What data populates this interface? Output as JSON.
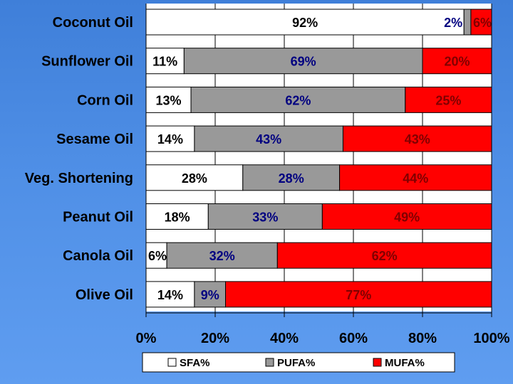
{
  "chart_data": {
    "type": "bar",
    "stacked": true,
    "orientation": "horizontal",
    "categories": [
      "Coconut Oil",
      "Sunflower Oil",
      "Corn Oil",
      "Sesame Oil",
      "Veg. Shortening",
      "Peanut Oil",
      "Canola Oil",
      "Olive Oil"
    ],
    "series": [
      {
        "name": "SFA%",
        "values": [
          92,
          11,
          13,
          14,
          28,
          18,
          6,
          14
        ],
        "color": "#ffffff",
        "label_color": "#000000"
      },
      {
        "name": "PUFA%",
        "values": [
          2,
          69,
          62,
          43,
          28,
          33,
          32,
          9
        ],
        "color": "#999999",
        "label_color": "#000080"
      },
      {
        "name": "MUFA%",
        "values": [
          6,
          20,
          25,
          43,
          44,
          49,
          62,
          77
        ],
        "color": "#ff0000",
        "label_color": "#800000"
      }
    ],
    "xlim": [
      0,
      100
    ],
    "x_ticks": [
      "0%",
      "20%",
      "40%",
      "60%",
      "80%",
      "100%"
    ],
    "legend_position": "bottom",
    "grid": true
  },
  "colors": {
    "background_top": "#3f7fd9",
    "plot_background": "#ffffff",
    "gridline": "#000000"
  }
}
